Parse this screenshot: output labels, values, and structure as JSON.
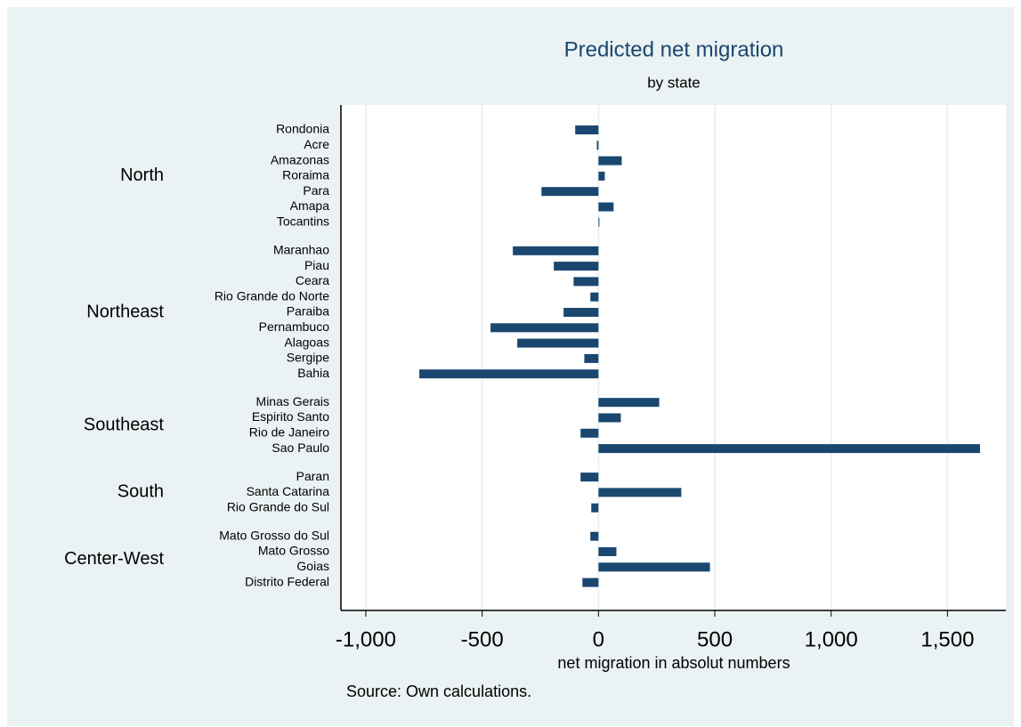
{
  "chart_data": {
    "type": "bar",
    "orientation": "horizontal",
    "title": "Predicted net migration",
    "subtitle": "by state",
    "x_label": "net migration in absolut numbers",
    "note": "Source: Own calculations.",
    "color": "#1a476f",
    "grid": true,
    "xlim": [
      -1107,
      1751
    ],
    "xticks": [
      {
        "value": -1000,
        "label": "-1,000"
      },
      -500,
      0,
      500,
      {
        "value": 1000,
        "label": "1,000"
      },
      {
        "value": 1500,
        "label": "1,500"
      }
    ],
    "groups": [
      {
        "name": "North",
        "categories": [
          "Rondonia",
          "Acre",
          "Amazonas",
          "Roraima",
          "Para",
          "Amapa",
          "Tocantins"
        ],
        "values": [
          -100,
          -7,
          100,
          27,
          -245,
          65,
          3
        ]
      },
      {
        "name": "Northeast",
        "categories": [
          "Maranhao",
          "Piau",
          "Ceara",
          "Rio Grande do Norte",
          "Paraiba",
          "Pernambuco",
          "Alagoas",
          "Sergipe",
          "Bahia"
        ],
        "values": [
          -368,
          -192,
          -107,
          -35,
          -150,
          -464,
          -349,
          -61,
          -770
        ]
      },
      {
        "name": "Southeast",
        "categories": [
          "Minas Gerais",
          "Espirito Santo",
          "Rio de Janeiro",
          "Sao Paulo"
        ],
        "values": [
          261,
          96,
          -77,
          1640
        ]
      },
      {
        "name": "South",
        "categories": [
          "Paran",
          "Santa Catarina",
          "Rio Grande do Sul"
        ],
        "values": [
          -77,
          356,
          -31
        ]
      },
      {
        "name": "Center-West",
        "categories": [
          "Mato Grosso do Sul",
          "Mato Grosso",
          "Goias",
          "Distrito Federal"
        ],
        "values": [
          -35,
          77,
          479,
          -69
        ]
      }
    ]
  }
}
